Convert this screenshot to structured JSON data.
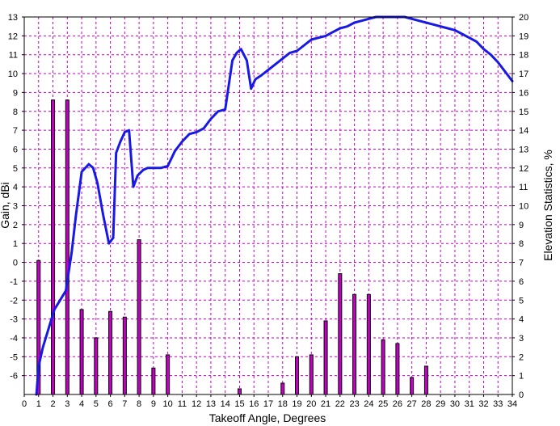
{
  "chart_data": {
    "type": "bar+line",
    "xlabel": "Takeoff Angle, Degrees",
    "ylabel_left": "Gain, dBi",
    "ylabel_right": "Elevation Statistics, %",
    "x_ticks": [
      0,
      1,
      2,
      3,
      4,
      5,
      6,
      7,
      8,
      9,
      10,
      11,
      12,
      13,
      14,
      15,
      16,
      17,
      18,
      19,
      20,
      21,
      22,
      23,
      24,
      25,
      26,
      27,
      28,
      29,
      30,
      31,
      32,
      33,
      34
    ],
    "xlim": [
      0,
      34
    ],
    "ylim_left": [
      -7,
      13
    ],
    "y_left_ticks": [
      13,
      12,
      11,
      10,
      9,
      8,
      7,
      6,
      5,
      4,
      3,
      2,
      1,
      0,
      -1,
      -2,
      -3,
      -4,
      -5,
      -6
    ],
    "ylim_right": [
      0,
      20
    ],
    "y_right_ticks": [
      20,
      19,
      18,
      17,
      16,
      15,
      14,
      13,
      12,
      11,
      10,
      9,
      8,
      7,
      6,
      5,
      4,
      3,
      2,
      1,
      0
    ],
    "grid": true,
    "colors": {
      "gain_line": "#1919e6",
      "bars_fill": "#c400c4",
      "bars_stroke": "#000000",
      "grid": "#c400c4"
    },
    "series": [
      {
        "axis": "left",
        "type": "line",
        "x": [
          0.85,
          1.0,
          1.3,
          1.7,
          2.1,
          2.5,
          2.9,
          3.3,
          3.6,
          4.0,
          4.5,
          4.8,
          5.1,
          5.5,
          5.9,
          6.2,
          6.4,
          6.7,
          7.0,
          7.3,
          7.6,
          7.9,
          8.3,
          8.6,
          9.0,
          9.5,
          10.0,
          10.5,
          11.0,
          11.5,
          12.0,
          12.5,
          13.0,
          13.5,
          14.0,
          14.5,
          14.8,
          15.1,
          15.5,
          15.8,
          16.1,
          16.5,
          17.0,
          17.5,
          18.0,
          18.5,
          19.0,
          19.5,
          20.0,
          20.5,
          21.0,
          21.5,
          22.0,
          22.5,
          23.0,
          23.5,
          24.0,
          24.5,
          25.0,
          25.5,
          26.0,
          26.5,
          27.0,
          27.5,
          28.0,
          28.5,
          29.0,
          29.5,
          30.0,
          30.5,
          31.0,
          31.5,
          32.0,
          32.5,
          33.0,
          33.5,
          34.0
        ],
        "values": [
          -7.0,
          -5.5,
          -4.5,
          -3.5,
          -2.5,
          -2.0,
          -1.5,
          0.5,
          2.5,
          4.8,
          5.2,
          5.0,
          4.2,
          2.5,
          1.0,
          1.3,
          5.8,
          6.4,
          6.9,
          7.0,
          4.0,
          4.6,
          4.9,
          5.0,
          5.0,
          5.0,
          5.1,
          5.9,
          6.4,
          6.8,
          6.9,
          7.1,
          7.6,
          8.0,
          8.1,
          10.7,
          11.1,
          11.3,
          10.7,
          9.2,
          9.7,
          9.9,
          10.2,
          10.5,
          10.8,
          11.1,
          11.2,
          11.5,
          11.8,
          11.9,
          12.0,
          12.2,
          12.4,
          12.5,
          12.7,
          12.8,
          12.9,
          13.0,
          13.0,
          13.0,
          13.0,
          13.0,
          12.9,
          12.8,
          12.7,
          12.6,
          12.5,
          12.4,
          12.3,
          12.1,
          11.9,
          11.7,
          11.3,
          11.0,
          10.6,
          10.1,
          9.6
        ]
      },
      {
        "axis": "right",
        "type": "bar",
        "x": [
          1,
          2,
          3,
          4,
          5,
          6,
          7,
          8,
          9,
          10,
          15,
          18,
          19,
          20,
          21,
          22,
          23,
          24,
          25,
          26,
          27,
          28
        ],
        "values": [
          7.1,
          15.6,
          15.6,
          4.5,
          3.0,
          4.4,
          4.1,
          8.2,
          1.4,
          2.1,
          0.3,
          0.6,
          2.0,
          2.1,
          3.9,
          6.4,
          5.3,
          5.3,
          2.9,
          2.7,
          0.9,
          1.5
        ]
      }
    ]
  }
}
